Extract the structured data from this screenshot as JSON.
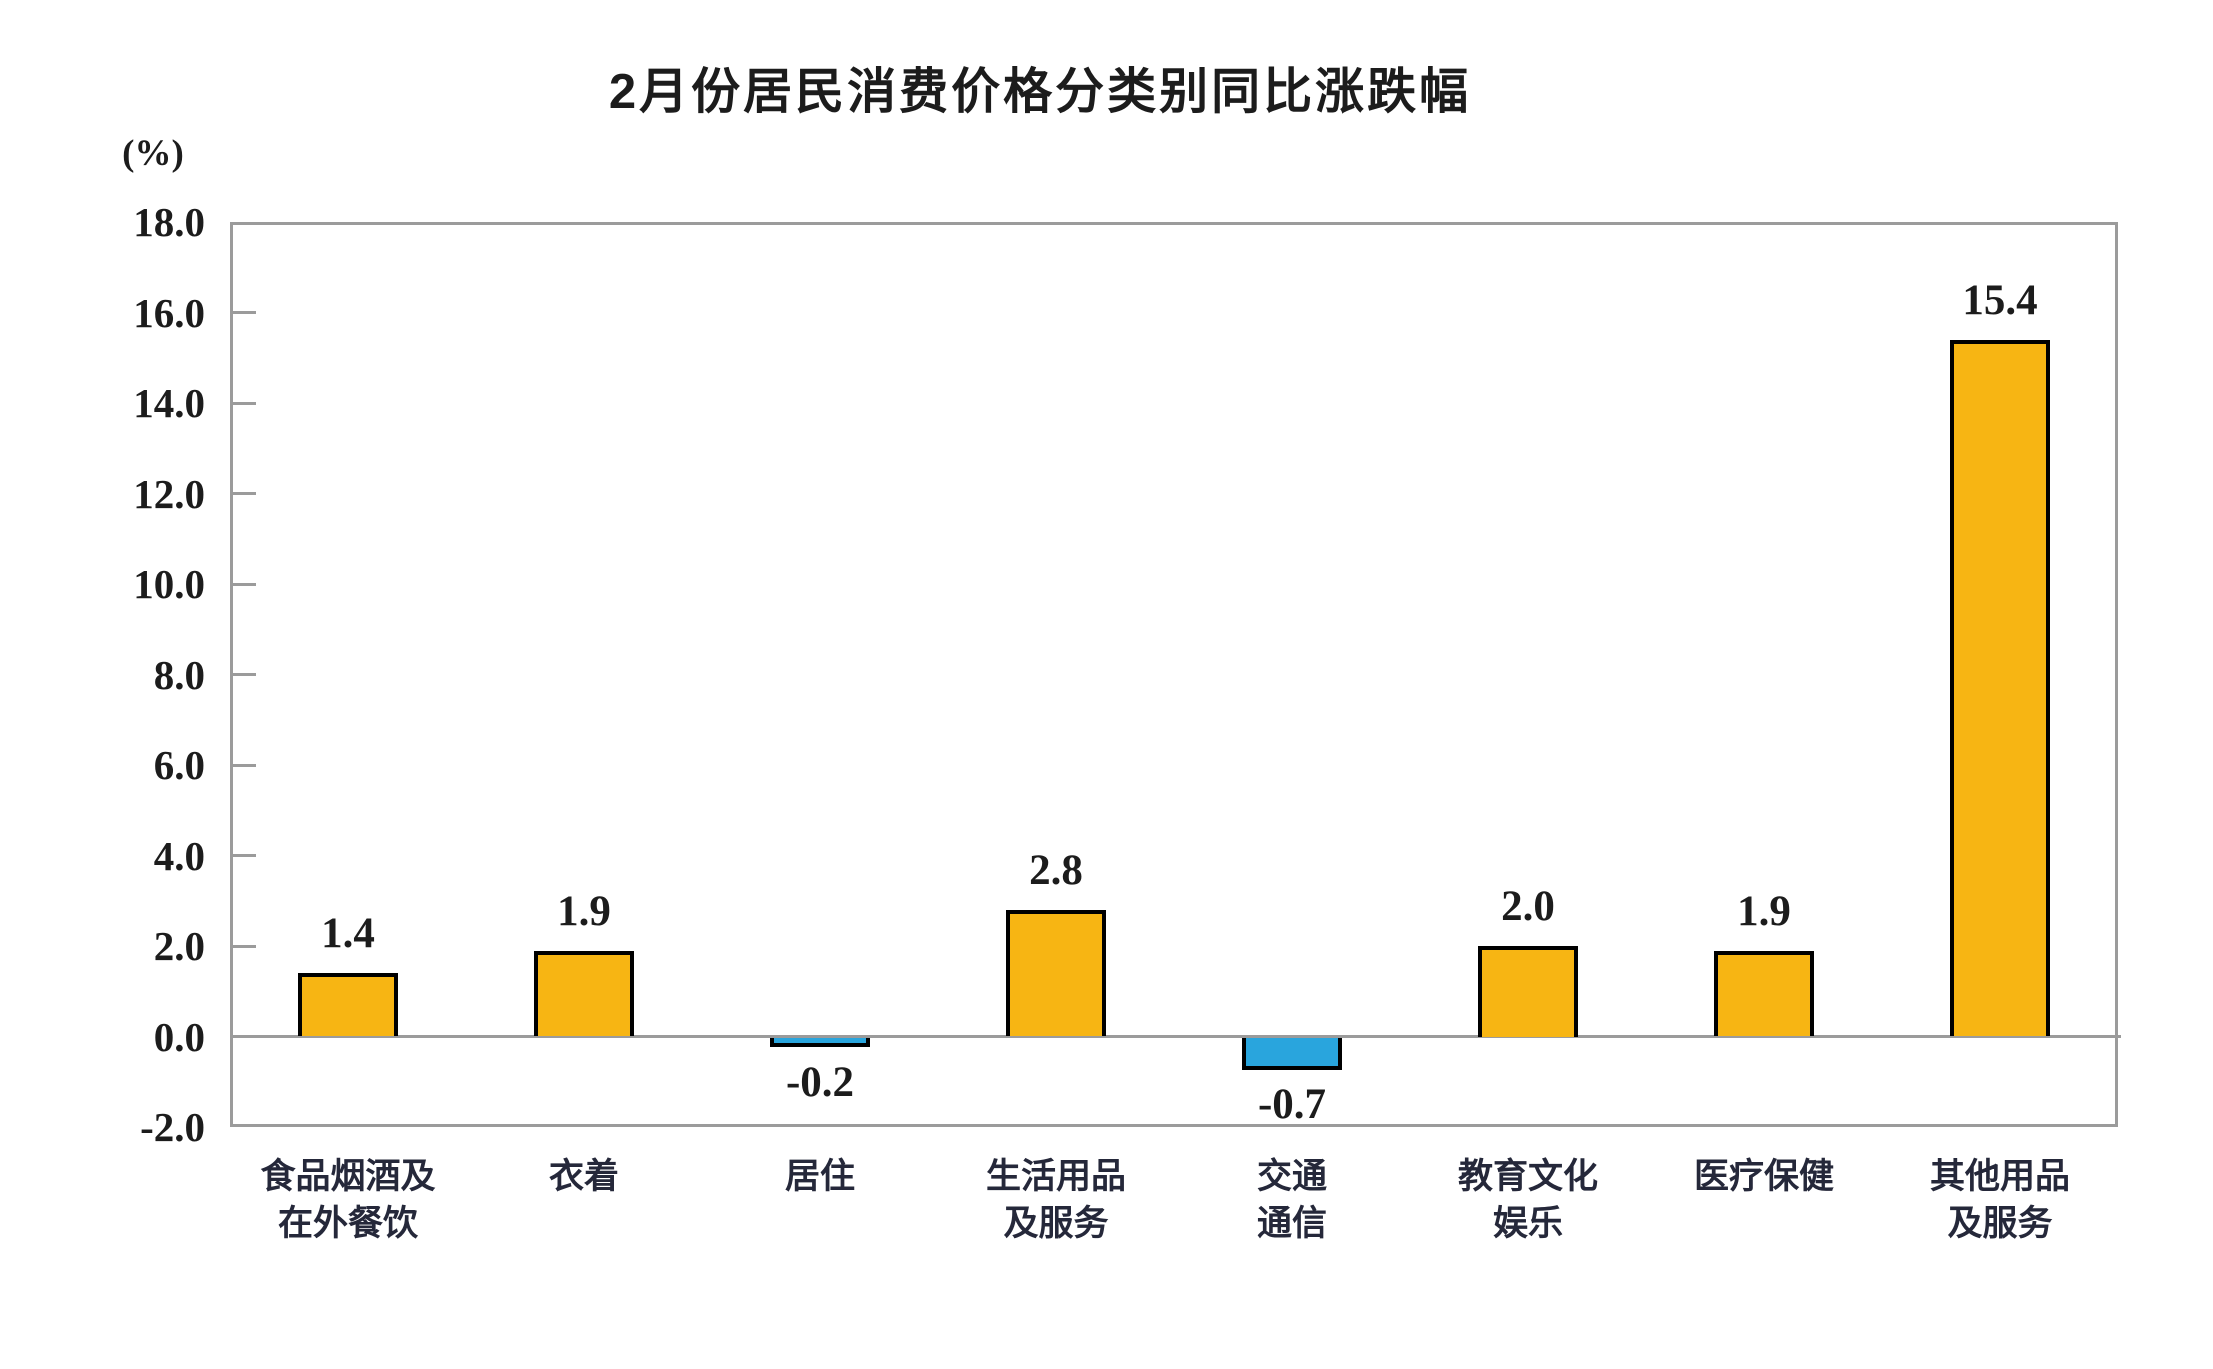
{
  "chart_data": {
    "type": "bar",
    "title": "2月份居民消费价格分类别同比涨跌幅",
    "unit_label": "(%)",
    "categories": [
      [
        "食品烟酒及",
        "在外餐饮"
      ],
      [
        "衣着"
      ],
      [
        "居住"
      ],
      [
        "生活用品",
        "及服务"
      ],
      [
        "交通",
        "通信"
      ],
      [
        "教育文化",
        "娱乐"
      ],
      [
        "医疗保健"
      ],
      [
        "其他用品",
        "及服务"
      ]
    ],
    "values": [
      1.4,
      1.9,
      -0.2,
      2.8,
      -0.7,
      2.0,
      1.9,
      15.4
    ],
    "value_labels": [
      "1.4",
      "1.9",
      "-0.2",
      "2.8",
      "-0.7",
      "2.0",
      "1.9",
      "15.4"
    ],
    "ylim": [
      -2.0,
      18.0
    ],
    "ytick_interval": 2.0,
    "ytick_labels": [
      "18.0",
      "16.0",
      "14.0",
      "12.0",
      "10.0",
      "8.0",
      "6.0",
      "4.0",
      "2.0",
      "0.0",
      "-2.0"
    ],
    "xlabel": "",
    "ylabel": "(%)",
    "grid": "none (zero baseline only)",
    "legend": "none",
    "colors": {
      "bar_positive": "#F7B513",
      "bar_negative": "#29A5DD",
      "bar_border": "#000000",
      "axis_frame": "#9B9B9B",
      "text": "#1C1C1C"
    }
  }
}
